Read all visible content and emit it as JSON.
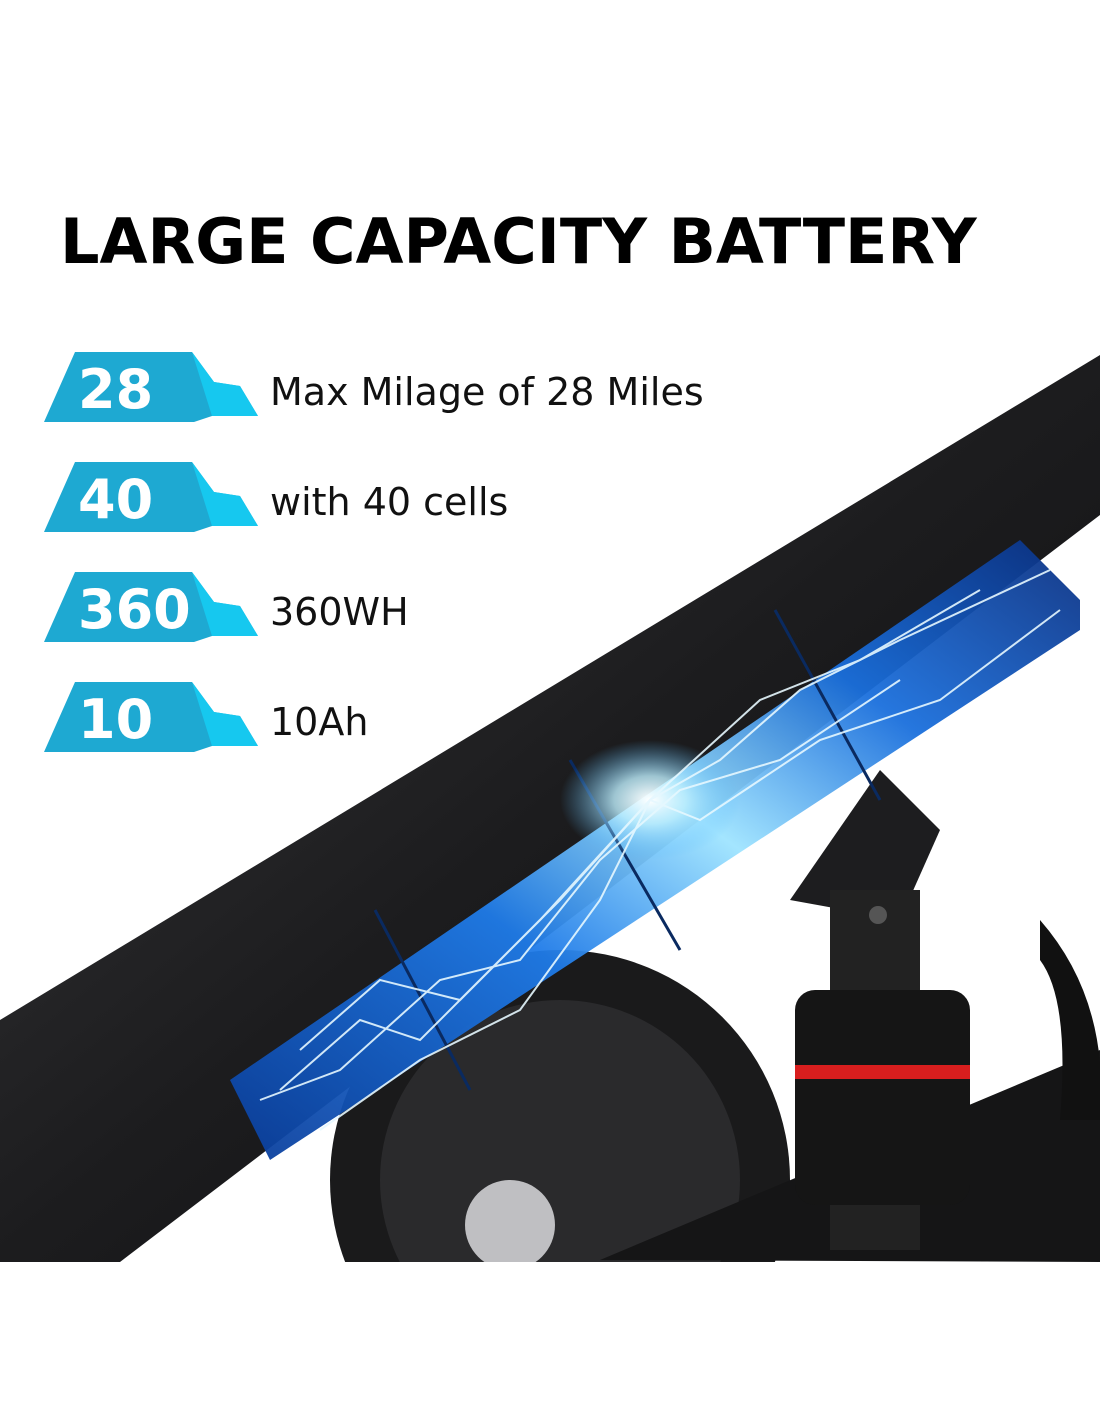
{
  "title": "LARGE CAPACITY BATTERY",
  "accent_color": "#1ea9d2",
  "accent_light": "#16c8ef",
  "specs": [
    {
      "value": "28",
      "label": "Max Milage of 28 Miles"
    },
    {
      "value": "40",
      "label": "with 40 cells"
    },
    {
      "value": "360",
      "label": "360WH"
    },
    {
      "value": "10",
      "label": "10Ah"
    }
  ]
}
